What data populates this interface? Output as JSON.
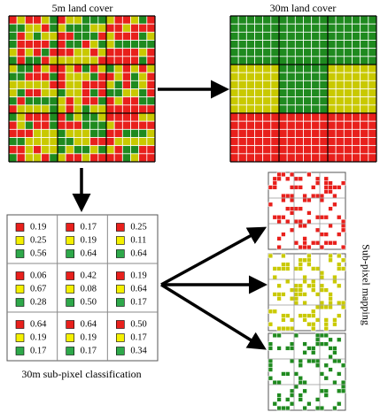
{
  "labels": {
    "fine_title": "5m land cover",
    "coarse_title": "30m land cover",
    "classification": "30m sub-pixel classification",
    "mapping": "Sub-pixel mapping"
  },
  "table": {
    "cells": [
      [
        [
          "0.19",
          "0.25",
          "0.56"
        ],
        [
          "0.17",
          "0.19",
          "0.64"
        ],
        [
          "0.25",
          "0.11",
          "0.64"
        ]
      ],
      [
        [
          "0.06",
          "0.67",
          "0.28"
        ],
        [
          "0.42",
          "0.08",
          "0.50"
        ],
        [
          "0.19",
          "0.64",
          "0.17"
        ]
      ],
      [
        [
          "0.64",
          "0.19",
          "0.17"
        ],
        [
          "0.64",
          "0.19",
          "0.17"
        ],
        [
          "0.50",
          "0.17",
          "0.34"
        ]
      ]
    ]
  }
}
